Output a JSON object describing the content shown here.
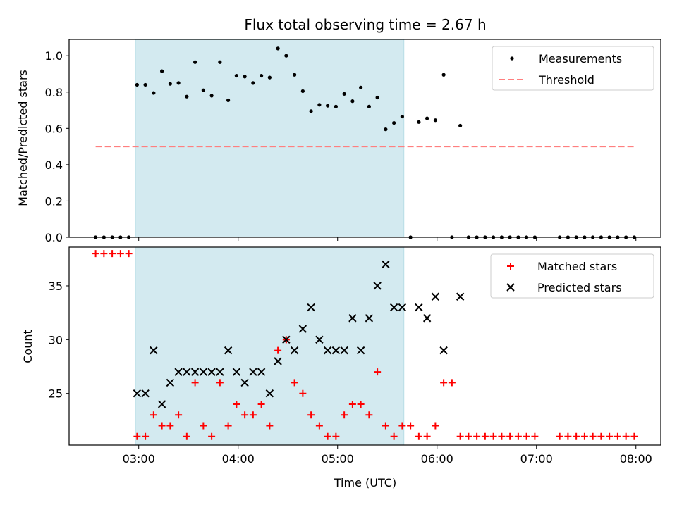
{
  "chart_data": [
    {
      "type": "scatter",
      "title": "Flux total observing time = 2.67 h",
      "xlabel": "",
      "ylabel": "Matched/Predicted stars",
      "xlim": [
        "02:18",
        "08:15"
      ],
      "ylim": [
        0,
        1.09
      ],
      "yticks": [
        0.0,
        0.2,
        0.4,
        0.6,
        0.8,
        1.0
      ],
      "ytick_labels": [
        "0.0",
        "0.2",
        "0.4",
        "0.6",
        "0.8",
        "1.0"
      ],
      "xticks": [
        "03:00",
        "04:00",
        "05:00",
        "06:00",
        "07:00",
        "08:00"
      ],
      "shaded_interval": [
        "02:58",
        "05:40"
      ],
      "shade_color": "#d3eaf0",
      "legend_position": "top-right",
      "series": [
        {
          "name": "Measurements",
          "marker": "dot",
          "color": "#000000",
          "points": [
            [
              "02:34",
              0.0
            ],
            [
              "02:39",
              0.0
            ],
            [
              "02:44",
              0.0
            ],
            [
              "02:49",
              0.0
            ],
            [
              "02:54",
              0.0
            ],
            [
              "02:59",
              0.84
            ],
            [
              "03:04",
              0.84
            ],
            [
              "03:09",
              0.795
            ],
            [
              "03:14",
              0.915
            ],
            [
              "03:19",
              0.845
            ],
            [
              "03:24",
              0.85
            ],
            [
              "03:29",
              0.775
            ],
            [
              "03:34",
              0.965
            ],
            [
              "03:39",
              0.81
            ],
            [
              "03:44",
              0.78
            ],
            [
              "03:49",
              0.965
            ],
            [
              "03:54",
              0.755
            ],
            [
              "03:59",
              0.89
            ],
            [
              "04:04",
              0.885
            ],
            [
              "04:09",
              0.85
            ],
            [
              "04:14",
              0.89
            ],
            [
              "04:19",
              0.88
            ],
            [
              "04:24",
              1.04
            ],
            [
              "04:29",
              1.0
            ],
            [
              "04:34",
              0.895
            ],
            [
              "04:39",
              0.805
            ],
            [
              "04:44",
              0.695
            ],
            [
              "04:49",
              0.73
            ],
            [
              "04:54",
              0.725
            ],
            [
              "04:59",
              0.72
            ],
            [
              "05:04",
              0.79
            ],
            [
              "05:09",
              0.75
            ],
            [
              "05:14",
              0.825
            ],
            [
              "05:19",
              0.72
            ],
            [
              "05:24",
              0.77
            ],
            [
              "05:29",
              0.595
            ],
            [
              "05:34",
              0.63
            ],
            [
              "05:39",
              0.665
            ],
            [
              "05:44",
              0.0
            ],
            [
              "05:49",
              0.635
            ],
            [
              "05:54",
              0.655
            ],
            [
              "05:59",
              0.645
            ],
            [
              "06:04",
              0.895
            ],
            [
              "06:09",
              0.0
            ],
            [
              "06:14",
              0.615
            ],
            [
              "06:19",
              0.0
            ],
            [
              "06:24",
              0.0
            ],
            [
              "06:29",
              0.0
            ],
            [
              "06:34",
              0.0
            ],
            [
              "06:39",
              0.0
            ],
            [
              "06:44",
              0.0
            ],
            [
              "06:49",
              0.0
            ],
            [
              "06:54",
              0.0
            ],
            [
              "06:59",
              0.0
            ],
            [
              "07:14",
              0.0
            ],
            [
              "07:19",
              0.0
            ],
            [
              "07:24",
              0.0
            ],
            [
              "07:29",
              0.0
            ],
            [
              "07:34",
              0.0
            ],
            [
              "07:39",
              0.0
            ],
            [
              "07:44",
              0.0
            ],
            [
              "07:49",
              0.0
            ],
            [
              "07:54",
              0.0
            ],
            [
              "07:59",
              0.0
            ]
          ]
        },
        {
          "name": "Threshold",
          "marker": "dashed-line",
          "color": "#ff7f7f",
          "points": [
            [
              "02:34",
              0.5
            ],
            [
              "07:59",
              0.5
            ]
          ]
        }
      ]
    },
    {
      "type": "scatter",
      "title": "",
      "xlabel": "Time (UTC)",
      "ylabel": "Count",
      "xlim": [
        "02:18",
        "08:15"
      ],
      "ylim": [
        20.2,
        38.6
      ],
      "yticks": [
        25,
        30,
        35
      ],
      "ytick_labels": [
        "25",
        "30",
        "35"
      ],
      "xticks": [
        "03:00",
        "04:00",
        "05:00",
        "06:00",
        "07:00",
        "08:00"
      ],
      "xtick_labels": [
        "03:00",
        "04:00",
        "05:00",
        "06:00",
        "07:00",
        "08:00"
      ],
      "shaded_interval": [
        "02:58",
        "05:40"
      ],
      "shade_color": "#d3eaf0",
      "legend_position": "top-right",
      "series": [
        {
          "name": "Matched stars",
          "marker": "plus",
          "color": "#ff0000",
          "points": [
            [
              "02:34",
              38
            ],
            [
              "02:39",
              38
            ],
            [
              "02:44",
              38
            ],
            [
              "02:49",
              38
            ],
            [
              "02:54",
              38
            ],
            [
              "02:59",
              21
            ],
            [
              "03:04",
              21
            ],
            [
              "03:09",
              23
            ],
            [
              "03:14",
              22
            ],
            [
              "03:19",
              22
            ],
            [
              "03:24",
              23
            ],
            [
              "03:29",
              21
            ],
            [
              "03:34",
              26
            ],
            [
              "03:39",
              22
            ],
            [
              "03:44",
              21
            ],
            [
              "03:49",
              26
            ],
            [
              "03:54",
              22
            ],
            [
              "03:59",
              24
            ],
            [
              "04:04",
              23
            ],
            [
              "04:09",
              23
            ],
            [
              "04:14",
              24
            ],
            [
              "04:19",
              22
            ],
            [
              "04:24",
              29
            ],
            [
              "04:29",
              30
            ],
            [
              "04:34",
              26
            ],
            [
              "04:39",
              25
            ],
            [
              "04:44",
              23
            ],
            [
              "04:49",
              22
            ],
            [
              "04:54",
              21
            ],
            [
              "04:59",
              21
            ],
            [
              "05:04",
              23
            ],
            [
              "05:09",
              24
            ],
            [
              "05:14",
              24
            ],
            [
              "05:19",
              23
            ],
            [
              "05:24",
              27
            ],
            [
              "05:29",
              22
            ],
            [
              "05:34",
              21
            ],
            [
              "05:39",
              22
            ],
            [
              "05:44",
              22
            ],
            [
              "05:49",
              21
            ],
            [
              "05:54",
              21
            ],
            [
              "05:59",
              22
            ],
            [
              "06:04",
              26
            ],
            [
              "06:09",
              26
            ],
            [
              "06:14",
              21
            ],
            [
              "06:19",
              21
            ],
            [
              "06:24",
              21
            ],
            [
              "06:29",
              21
            ],
            [
              "06:34",
              21
            ],
            [
              "06:39",
              21
            ],
            [
              "06:44",
              21
            ],
            [
              "06:49",
              21
            ],
            [
              "06:54",
              21
            ],
            [
              "06:59",
              21
            ],
            [
              "07:14",
              21
            ],
            [
              "07:19",
              21
            ],
            [
              "07:24",
              21
            ],
            [
              "07:29",
              21
            ],
            [
              "07:34",
              21
            ],
            [
              "07:39",
              21
            ],
            [
              "07:44",
              21
            ],
            [
              "07:49",
              21
            ],
            [
              "07:54",
              21
            ],
            [
              "07:59",
              21
            ]
          ]
        },
        {
          "name": "Predicted stars",
          "marker": "x",
          "color": "#000000",
          "points": [
            [
              "02:59",
              25
            ],
            [
              "03:04",
              25
            ],
            [
              "03:09",
              29
            ],
            [
              "03:14",
              24
            ],
            [
              "03:19",
              26
            ],
            [
              "03:24",
              27
            ],
            [
              "03:29",
              27
            ],
            [
              "03:34",
              27
            ],
            [
              "03:39",
              27
            ],
            [
              "03:44",
              27
            ],
            [
              "03:49",
              27
            ],
            [
              "03:54",
              29
            ],
            [
              "03:59",
              27
            ],
            [
              "04:04",
              26
            ],
            [
              "04:09",
              27
            ],
            [
              "04:14",
              27
            ],
            [
              "04:19",
              25
            ],
            [
              "04:24",
              28
            ],
            [
              "04:29",
              30
            ],
            [
              "04:34",
              29
            ],
            [
              "04:39",
              31
            ],
            [
              "04:44",
              33
            ],
            [
              "04:49",
              30
            ],
            [
              "04:54",
              29
            ],
            [
              "04:59",
              29
            ],
            [
              "05:04",
              29
            ],
            [
              "05:09",
              32
            ],
            [
              "05:14",
              29
            ],
            [
              "05:19",
              32
            ],
            [
              "05:24",
              35
            ],
            [
              "05:29",
              37
            ],
            [
              "05:34",
              33
            ],
            [
              "05:39",
              33
            ],
            [
              "05:49",
              33
            ],
            [
              "05:54",
              32
            ],
            [
              "05:59",
              34
            ],
            [
              "06:04",
              29
            ],
            [
              "06:14",
              34
            ]
          ]
        }
      ]
    }
  ]
}
